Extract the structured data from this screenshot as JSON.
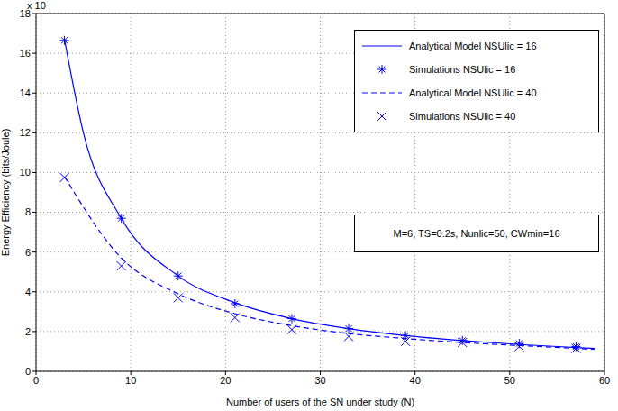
{
  "chart_data": {
    "type": "line",
    "multiplier": "x 10",
    "xlabel": "Number of users of the SN under study (N)",
    "ylabel": "Energy  Efficiency (bits/Joule)",
    "annotation": "M=6, TS=0.2s, Nunlic=50, CWmin=16",
    "xlim": [
      0,
      60
    ],
    "xticks": [
      0,
      10,
      20,
      30,
      40,
      50,
      60
    ],
    "ylim": [
      0,
      18
    ],
    "yticks": [
      0,
      2,
      4,
      6,
      8,
      10,
      12,
      14,
      16,
      18
    ],
    "grid": true,
    "legend": "upper right",
    "series": [
      {
        "name": "Analytical Model NSUlic = 16",
        "type": "line",
        "line_style": "solid",
        "color": "#0000ff",
        "x": [
          3,
          5,
          9,
          15,
          21,
          27,
          33,
          39,
          45,
          51,
          57,
          59
        ],
        "values": [
          16.7,
          12,
          7.7,
          4.8,
          3.45,
          2.65,
          2.15,
          1.8,
          1.55,
          1.35,
          1.2,
          1.15
        ]
      },
      {
        "name": "Simulations NSUlic = 16",
        "type": "scatter",
        "marker": "star",
        "color": "#0000ff",
        "x": [
          3,
          9,
          15,
          21,
          27,
          33,
          39,
          45,
          51,
          57
        ],
        "values": [
          16.65,
          7.7,
          4.8,
          3.4,
          2.65,
          2.15,
          1.8,
          1.55,
          1.4,
          1.25
        ]
      },
      {
        "name": "Analytical Model NSUlic = 40",
        "type": "line",
        "line_style": "dashed",
        "color": "#0000ff",
        "x": [
          3,
          9,
          15,
          21,
          27,
          33,
          39,
          45,
          51,
          57,
          59
        ],
        "values": [
          9.8,
          5.7,
          3.9,
          2.9,
          2.3,
          1.9,
          1.65,
          1.45,
          1.3,
          1.15,
          1.1
        ]
      },
      {
        "name": "Simulations NSUlic = 40",
        "type": "scatter",
        "marker": "x",
        "color": "#0000ff",
        "x": [
          3,
          9,
          15,
          21,
          27,
          33,
          39,
          45,
          51,
          57
        ],
        "values": [
          9.75,
          5.3,
          3.7,
          2.7,
          2.1,
          1.75,
          1.5,
          1.45,
          1.25,
          1.15
        ]
      }
    ]
  }
}
